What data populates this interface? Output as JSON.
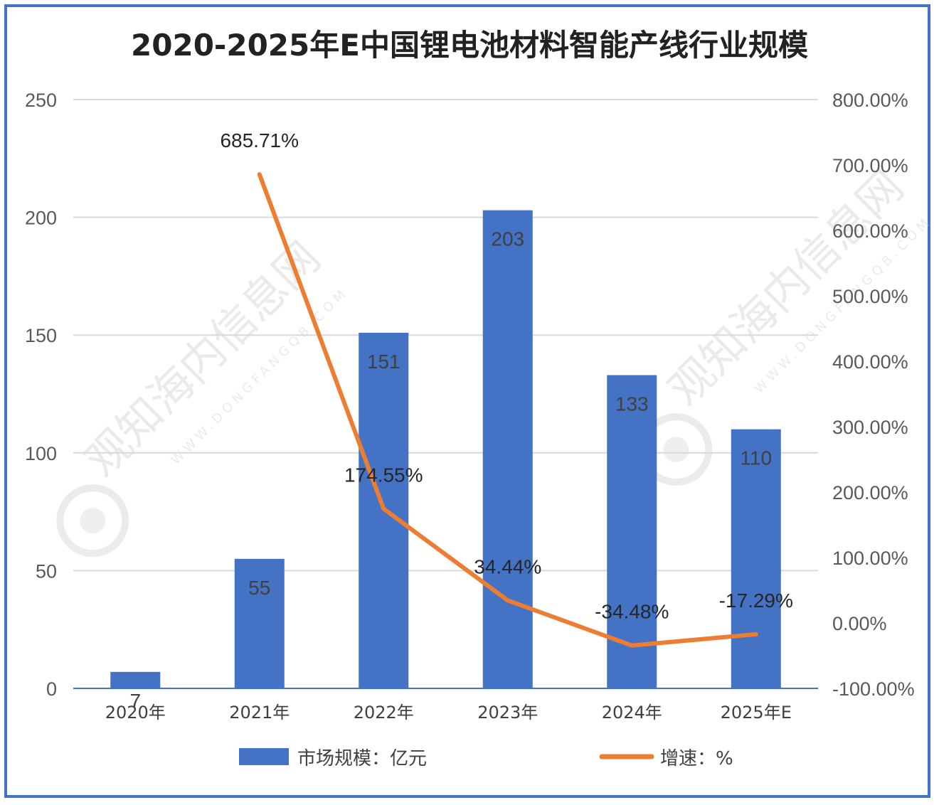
{
  "chart_data": {
    "type": "bar+line",
    "title": "2020-2025年E中国锂电池材料智能产线行业规模",
    "categories": [
      "2020年",
      "2021年",
      "2022年",
      "2023年",
      "2024年",
      "2025年E"
    ],
    "series": [
      {
        "name": "市场规模：亿元",
        "type": "bar",
        "axis": "left",
        "color": "#4472c4",
        "values": [
          7,
          55,
          151,
          203,
          133,
          110
        ],
        "labels": [
          "7",
          "55",
          "151",
          "203",
          "133",
          "110"
        ]
      },
      {
        "name": "增速：%",
        "type": "line",
        "axis": "right",
        "color": "#ed7d31",
        "values": [
          null,
          685.71,
          174.55,
          34.44,
          -34.48,
          -17.29
        ],
        "labels": [
          "",
          "685.71%",
          "174.55%",
          "34.44%",
          "-34.48%",
          "-17.29%"
        ]
      }
    ],
    "left_axis": {
      "ylim": [
        0,
        250
      ],
      "ticks": [
        0,
        50,
        100,
        150,
        200,
        250
      ],
      "tick_labels": [
        "0",
        "50",
        "100",
        "150",
        "200",
        "250"
      ]
    },
    "right_axis": {
      "ylim": [
        -100,
        800
      ],
      "ticks": [
        -100,
        0,
        100,
        200,
        300,
        400,
        500,
        600,
        700,
        800
      ],
      "tick_labels": [
        "-100.00%",
        "0.00%",
        "100.00%",
        "200.00%",
        "300.00%",
        "400.00%",
        "500.00%",
        "600.00%",
        "700.00%",
        "800.00%"
      ]
    },
    "grid": true,
    "legend": "bottom",
    "legend_entries": [
      "市场规模：亿元",
      "增速：%"
    ],
    "watermark": [
      "观知海内信息网",
      "WWW.DONGFANGQB.COM"
    ]
  }
}
